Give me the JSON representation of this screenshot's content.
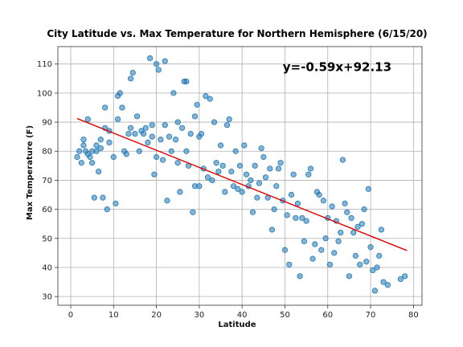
{
  "chart_data": {
    "type": "scatter",
    "title": "City Latitude vs. Max Temperature for Northern Hemisphere (6/15/20)",
    "xlabel": "Latitude",
    "ylabel": "Max Temperature (F)",
    "xlim": [
      -3,
      82
    ],
    "ylim": [
      27,
      116
    ],
    "xticks": [
      0,
      10,
      20,
      30,
      40,
      50,
      60,
      70,
      80
    ],
    "yticks": [
      30,
      40,
      50,
      60,
      70,
      80,
      90,
      100,
      110
    ],
    "grid": true,
    "marker_color": "#1f77b4",
    "line_color": "#e00000",
    "regression": {
      "slope": -0.59,
      "intercept": 92.13,
      "x_range": [
        1.5,
        78.5
      ]
    },
    "annotation": {
      "text": "y=-0.59x+92.13",
      "x": 49.5,
      "y": 109
    },
    "points": [
      [
        1.5,
        78
      ],
      [
        2,
        80
      ],
      [
        2.5,
        76
      ],
      [
        3,
        84
      ],
      [
        3,
        82
      ],
      [
        3.5,
        80
      ],
      [
        4,
        91
      ],
      [
        4,
        79
      ],
      [
        4.5,
        78
      ],
      [
        5,
        76
      ],
      [
        5,
        80
      ],
      [
        5.5,
        64
      ],
      [
        6,
        82
      ],
      [
        6,
        80
      ],
      [
        6.5,
        73
      ],
      [
        7,
        84
      ],
      [
        7,
        81
      ],
      [
        7.5,
        64
      ],
      [
        8,
        88
      ],
      [
        8,
        95
      ],
      [
        8.5,
        60
      ],
      [
        9,
        87
      ],
      [
        9,
        83
      ],
      [
        10,
        78
      ],
      [
        10.5,
        62
      ],
      [
        11,
        91
      ],
      [
        11,
        99
      ],
      [
        11.5,
        100
      ],
      [
        12,
        95
      ],
      [
        12.5,
        80
      ],
      [
        13,
        79
      ],
      [
        13.5,
        86
      ],
      [
        14,
        88
      ],
      [
        14,
        105
      ],
      [
        14.5,
        107
      ],
      [
        15,
        86
      ],
      [
        15.5,
        92
      ],
      [
        16,
        80
      ],
      [
        16.5,
        87
      ],
      [
        17,
        86
      ],
      [
        17.5,
        88
      ],
      [
        18,
        83
      ],
      [
        18.5,
        112
      ],
      [
        19,
        89
      ],
      [
        19,
        85
      ],
      [
        19.5,
        72
      ],
      [
        20,
        78
      ],
      [
        20,
        110
      ],
      [
        20.5,
        108
      ],
      [
        21,
        84
      ],
      [
        21.5,
        77
      ],
      [
        22,
        111
      ],
      [
        22,
        89
      ],
      [
        22.5,
        63
      ],
      [
        23,
        85
      ],
      [
        23.5,
        80
      ],
      [
        24,
        100
      ],
      [
        24.5,
        84
      ],
      [
        25,
        76
      ],
      [
        25,
        90
      ],
      [
        25.5,
        66
      ],
      [
        26,
        88
      ],
      [
        26.5,
        104
      ],
      [
        27,
        104
      ],
      [
        27,
        80
      ],
      [
        27.5,
        75
      ],
      [
        28,
        86
      ],
      [
        28.5,
        59
      ],
      [
        29,
        92
      ],
      [
        29,
        68
      ],
      [
        29.5,
        96
      ],
      [
        30,
        85
      ],
      [
        30,
        68
      ],
      [
        30.5,
        86
      ],
      [
        31,
        74
      ],
      [
        31.5,
        99
      ],
      [
        32,
        71
      ],
      [
        32.5,
        98
      ],
      [
        33,
        70
      ],
      [
        33.5,
        90
      ],
      [
        34,
        76
      ],
      [
        34.5,
        73
      ],
      [
        35,
        82
      ],
      [
        35.5,
        75
      ],
      [
        36,
        66
      ],
      [
        36.5,
        89
      ],
      [
        37,
        91
      ],
      [
        37.5,
        73
      ],
      [
        38,
        68
      ],
      [
        38.5,
        80
      ],
      [
        39,
        67
      ],
      [
        39.5,
        75
      ],
      [
        40,
        66
      ],
      [
        40.5,
        82
      ],
      [
        41,
        72
      ],
      [
        41.5,
        68
      ],
      [
        42,
        70
      ],
      [
        42.5,
        59
      ],
      [
        43,
        75
      ],
      [
        43.5,
        64
      ],
      [
        44,
        69
      ],
      [
        44.5,
        81
      ],
      [
        45,
        78
      ],
      [
        45.5,
        71
      ],
      [
        46,
        64
      ],
      [
        46.5,
        74
      ],
      [
        47,
        53
      ],
      [
        47.5,
        60
      ],
      [
        48,
        68
      ],
      [
        48.5,
        74
      ],
      [
        49,
        76
      ],
      [
        49.5,
        63
      ],
      [
        50,
        46
      ],
      [
        50.5,
        58
      ],
      [
        51,
        41
      ],
      [
        51.5,
        65
      ],
      [
        52,
        72
      ],
      [
        52.5,
        57
      ],
      [
        53,
        62
      ],
      [
        53.5,
        37
      ],
      [
        54,
        57
      ],
      [
        54.5,
        49
      ],
      [
        55,
        56
      ],
      [
        55.5,
        72
      ],
      [
        56,
        74
      ],
      [
        56.5,
        43
      ],
      [
        57,
        48
      ],
      [
        57.5,
        66
      ],
      [
        58,
        65
      ],
      [
        58.5,
        46
      ],
      [
        59,
        63
      ],
      [
        59.5,
        50
      ],
      [
        60,
        57
      ],
      [
        60.5,
        41
      ],
      [
        61,
        61
      ],
      [
        61.5,
        45
      ],
      [
        62,
        56
      ],
      [
        62.5,
        49
      ],
      [
        63,
        52
      ],
      [
        63.5,
        77
      ],
      [
        64,
        62
      ],
      [
        64.5,
        59
      ],
      [
        65,
        37
      ],
      [
        65.5,
        57
      ],
      [
        66,
        52
      ],
      [
        66.5,
        44
      ],
      [
        67,
        54
      ],
      [
        67.5,
        41
      ],
      [
        68,
        55
      ],
      [
        68.5,
        60
      ],
      [
        69,
        42
      ],
      [
        69.5,
        67
      ],
      [
        70,
        47
      ],
      [
        70.5,
        39
      ],
      [
        71,
        32
      ],
      [
        71.5,
        40
      ],
      [
        72,
        44
      ],
      [
        72.5,
        53
      ],
      [
        73,
        35
      ],
      [
        74,
        34
      ],
      [
        77,
        36
      ],
      [
        78,
        37
      ]
    ]
  }
}
